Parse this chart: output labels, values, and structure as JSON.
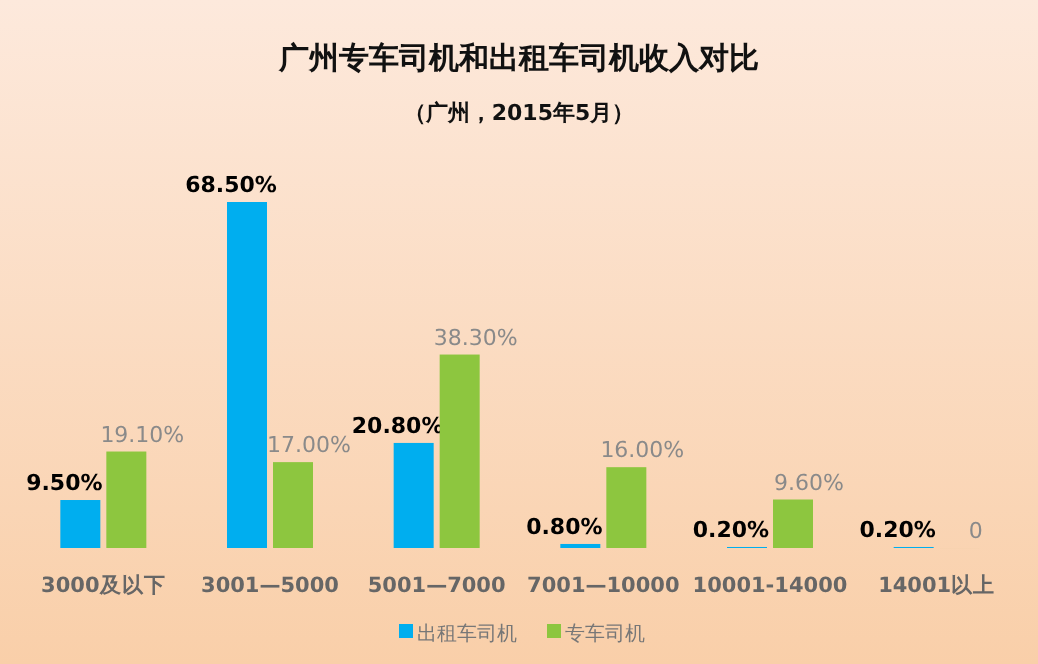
{
  "chart_data": {
    "type": "bar",
    "title": "广州专车司机和出租车司机收入对比",
    "subtitle": "（广州，2015年5月）",
    "categories": [
      "3000及以下",
      "3001—5000",
      "5001—7000",
      "7001—10000",
      "10001-14000",
      "14001以上"
    ],
    "series": [
      {
        "name": "出租车司机",
        "color": "#00aeef",
        "values": [
          9.5,
          68.5,
          20.8,
          0.8,
          0.2,
          0.2
        ],
        "value_labels": [
          "9.50%",
          "68.50%",
          "20.80%",
          "0.80%",
          "0.20%",
          "0.20%"
        ]
      },
      {
        "name": "专车司机",
        "color": "#8dc63f",
        "values": [
          19.1,
          17.0,
          38.3,
          16.0,
          9.6,
          0
        ],
        "value_labels": [
          "19.10%",
          "17.00%",
          "38.30%",
          "16.00%",
          "9.60%",
          "0"
        ]
      }
    ],
    "ylim": [
      0,
      68.5
    ],
    "legend": "bottom",
    "grid": false
  }
}
